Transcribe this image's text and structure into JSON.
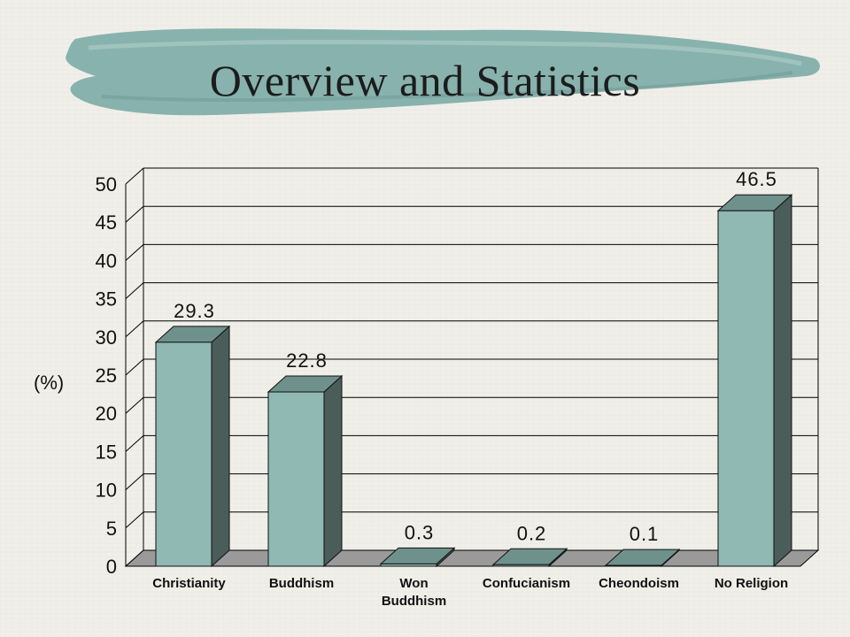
{
  "slide": {
    "title": "Overview and Statistics"
  },
  "colors": {
    "background": "#f1efe9",
    "brush": "#88b2ad",
    "bar_front": "#8fb9b2",
    "bar_top": "#6f918c",
    "bar_side": "#4b5d59",
    "floor": "#9a9a9a",
    "grid": "#000000"
  },
  "chart_data": {
    "type": "bar",
    "style": "3d-column",
    "ylabel": "(%)",
    "categories": [
      [
        "Christianity"
      ],
      [
        "Buddhism"
      ],
      [
        "Won",
        "Buddhism"
      ],
      [
        "Confucianism"
      ],
      [
        "Cheondoism"
      ],
      [
        "No Religion"
      ]
    ],
    "values": [
      29.3,
      22.8,
      0.3,
      0.2,
      0.1,
      46.5
    ],
    "data_labels": [
      "29.3",
      "22.8",
      "0.3",
      "0.2",
      "0.1",
      "46.5"
    ],
    "ylim": [
      0,
      50
    ],
    "yticks": [
      0,
      5,
      10,
      15,
      20,
      25,
      30,
      35,
      40,
      45,
      50
    ],
    "grid": true,
    "legend": "none"
  }
}
